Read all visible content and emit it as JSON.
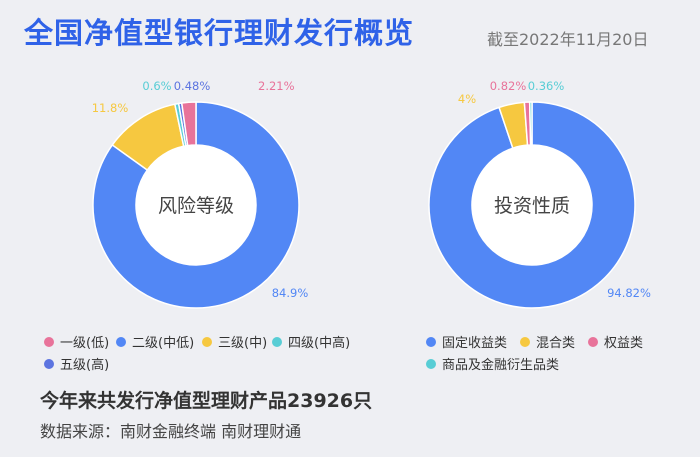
{
  "header": {
    "title": "全国净值型银行理财发行概览",
    "date": "截至2022年11月20日"
  },
  "footer": {
    "summary": "今年来共发行净值型理财产品23926只",
    "source": "数据来源：南财金融终端 南财理财通"
  },
  "chart_data": [
    {
      "type": "pie",
      "center_label": "风险等级",
      "categories": [
        "一级(低)",
        "二级(中低)",
        "三级(中)",
        "四级(中高)",
        "五级(高)"
      ],
      "values": [
        2.21,
        84.9,
        11.8,
        0.6,
        0.48
      ],
      "value_labels": [
        "2.21%",
        "84.9%",
        "11.8%",
        "0.6%",
        "0.48%"
      ],
      "colors": [
        "#e8739a",
        "#5287f5",
        "#f6c840",
        "#58cdd5",
        "#5c74e0"
      ]
    },
    {
      "type": "pie",
      "center_label": "投资性质",
      "categories": [
        "固定收益类",
        "混合类",
        "权益类",
        "商品及金融衍生品类"
      ],
      "values": [
        94.82,
        4,
        0.82,
        0.36
      ],
      "value_labels": [
        "94.82%",
        "4%",
        "0.82%",
        "0.36%"
      ],
      "colors": [
        "#5287f5",
        "#f6c840",
        "#e8739a",
        "#58cdd5"
      ]
    }
  ]
}
